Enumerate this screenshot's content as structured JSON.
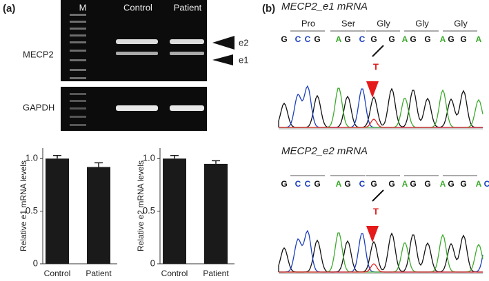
{
  "panel_labels": [
    "(a)",
    "(b)"
  ],
  "gel": {
    "lanes": [
      "M",
      "Control",
      "Patient"
    ],
    "genes": [
      "MECP2",
      "GAPDH"
    ],
    "bands": [
      "e2",
      "e1"
    ]
  },
  "sequencing": [
    {
      "title": "MECP2_e1 mRNA",
      "amino_acids": [
        "Pro",
        "Ser",
        "Gly",
        "Gly",
        "Gly"
      ],
      "bases": [
        "G",
        "C",
        "C",
        "G",
        "A",
        "G",
        "C",
        "G",
        "G",
        "A",
        "G",
        "G",
        "A",
        "G",
        "G",
        "A"
      ],
      "mutation": "T"
    },
    {
      "title": "MECP2_e2 mRNA",
      "bases": [
        "G",
        "C",
        "C",
        "G",
        "A",
        "G",
        "C",
        "G",
        "G",
        "A",
        "G",
        "G",
        "A",
        "G",
        "G",
        "A",
        "C"
      ],
      "mutation": "T"
    }
  ],
  "chart_data": [
    {
      "type": "bar",
      "ylabel": "Relative e1 mRNA levels",
      "categories": [
        "Control",
        "Patient"
      ],
      "values": [
        1.0,
        0.92
      ],
      "errors": [
        0.03,
        0.04
      ],
      "ylim": [
        0,
        1.1
      ],
      "yticks": [
        0,
        0.5,
        {
          "value": 1,
          "label": "1.0"
        }
      ],
      "color": "#1a1a1a"
    },
    {
      "type": "bar",
      "ylabel": "Relative e2 mRNA levels",
      "categories": [
        "Control",
        "Patient"
      ],
      "values": [
        1.0,
        0.95
      ],
      "errors": [
        0.03,
        0.03
      ],
      "ylim": [
        0,
        1.1
      ],
      "yticks": [
        0,
        0.5,
        {
          "value": 1,
          "label": "1.0"
        }
      ],
      "color": "#1a1a1a"
    }
  ]
}
